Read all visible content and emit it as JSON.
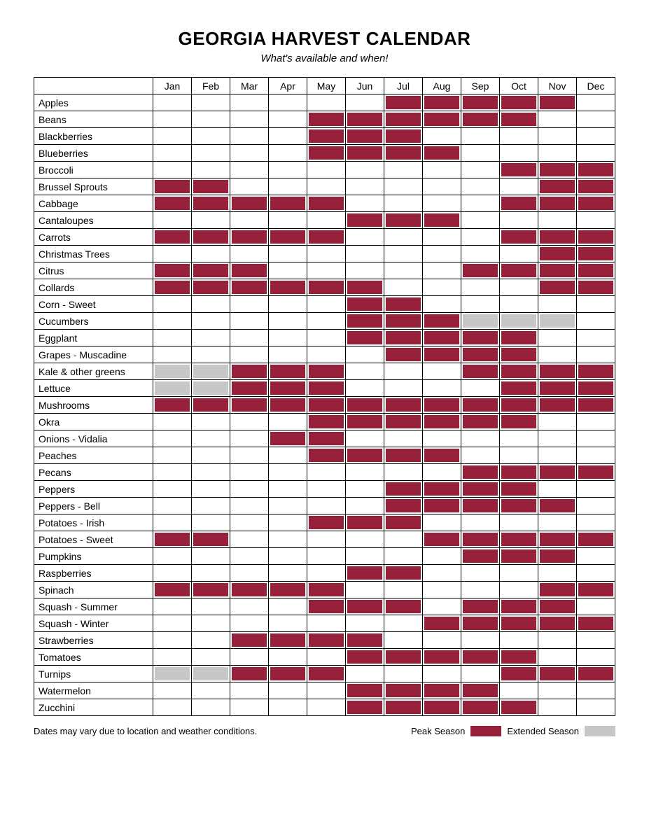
{
  "title": "GEORGIA HARVEST CALENDAR",
  "subtitle": "What's available and when!",
  "colors": {
    "peak": "#97203a",
    "extended": "#c7c7c7",
    "border": "#000000",
    "background": "#ffffff"
  },
  "months": [
    "Jan",
    "Feb",
    "Mar",
    "Apr",
    "May",
    "Jun",
    "Jul",
    "Aug",
    "Sep",
    "Oct",
    "Nov",
    "Dec"
  ],
  "legend": {
    "peak_label": "Peak Season",
    "extended_label": "Extended Season"
  },
  "footnote": "Dates may vary due to location and weather conditions.",
  "produce": [
    {
      "name": "Apples",
      "months": [
        "",
        "",
        "",
        "",
        "",
        "",
        "P",
        "P",
        "P",
        "P",
        "P",
        ""
      ]
    },
    {
      "name": "Beans",
      "months": [
        "",
        "",
        "",
        "",
        "P",
        "P",
        "P",
        "P",
        "P",
        "P",
        "",
        ""
      ]
    },
    {
      "name": "Blackberries",
      "months": [
        "",
        "",
        "",
        "",
        "P",
        "P",
        "P",
        "",
        "",
        "",
        "",
        ""
      ]
    },
    {
      "name": "Blueberries",
      "months": [
        "",
        "",
        "",
        "",
        "P",
        "P",
        "P",
        "P",
        "",
        "",
        "",
        ""
      ]
    },
    {
      "name": "Broccoli",
      "months": [
        "",
        "",
        "",
        "",
        "",
        "",
        "",
        "",
        "",
        "P",
        "P",
        "P"
      ]
    },
    {
      "name": "Brussel Sprouts",
      "months": [
        "P",
        "P",
        "",
        "",
        "",
        "",
        "",
        "",
        "",
        "",
        "P",
        "P"
      ]
    },
    {
      "name": "Cabbage",
      "months": [
        "P",
        "P",
        "P",
        "P",
        "P",
        "",
        "",
        "",
        "",
        "P",
        "P",
        "P"
      ]
    },
    {
      "name": "Cantaloupes",
      "months": [
        "",
        "",
        "",
        "",
        "",
        "P",
        "P",
        "P",
        "",
        "",
        "",
        ""
      ]
    },
    {
      "name": "Carrots",
      "months": [
        "P",
        "P",
        "P",
        "P",
        "P",
        "",
        "",
        "",
        "",
        "P",
        "P",
        "P"
      ]
    },
    {
      "name": "Christmas Trees",
      "months": [
        "",
        "",
        "",
        "",
        "",
        "",
        "",
        "",
        "",
        "",
        "P",
        "P"
      ]
    },
    {
      "name": "Citrus",
      "months": [
        "P",
        "P",
        "P",
        "",
        "",
        "",
        "",
        "",
        "P",
        "P",
        "P",
        "P"
      ]
    },
    {
      "name": "Collards",
      "months": [
        "P",
        "P",
        "P",
        "P",
        "P",
        "P",
        "",
        "",
        "",
        "",
        "P",
        "P"
      ]
    },
    {
      "name": "Corn - Sweet",
      "months": [
        "",
        "",
        "",
        "",
        "",
        "P",
        "P",
        "",
        "",
        "",
        "",
        ""
      ]
    },
    {
      "name": "Cucumbers",
      "months": [
        "",
        "",
        "",
        "",
        "",
        "P",
        "P",
        "P",
        "E",
        "E",
        "E",
        ""
      ]
    },
    {
      "name": "Eggplant",
      "months": [
        "",
        "",
        "",
        "",
        "",
        "P",
        "P",
        "P",
        "P",
        "P",
        "",
        ""
      ]
    },
    {
      "name": "Grapes - Muscadine",
      "months": [
        "",
        "",
        "",
        "",
        "",
        "",
        "P",
        "P",
        "P",
        "P",
        "",
        ""
      ]
    },
    {
      "name": "Kale & other greens",
      "months": [
        "E",
        "E",
        "P",
        "P",
        "P",
        "",
        "",
        "",
        "P",
        "P",
        "P",
        "P"
      ]
    },
    {
      "name": "Lettuce",
      "months": [
        "E",
        "E",
        "P",
        "P",
        "P",
        "",
        "",
        "",
        "",
        "P",
        "P",
        "P"
      ]
    },
    {
      "name": "Mushrooms",
      "months": [
        "P",
        "P",
        "P",
        "P",
        "P",
        "P",
        "P",
        "P",
        "P",
        "P",
        "P",
        "P"
      ]
    },
    {
      "name": "Okra",
      "months": [
        "",
        "",
        "",
        "",
        "P",
        "P",
        "P",
        "P",
        "P",
        "P",
        "",
        ""
      ]
    },
    {
      "name": "Onions - Vidalia",
      "months": [
        "",
        "",
        "",
        "P",
        "P",
        "",
        "",
        "",
        "",
        "",
        "",
        ""
      ]
    },
    {
      "name": "Peaches",
      "months": [
        "",
        "",
        "",
        "",
        "P",
        "P",
        "P",
        "P",
        "",
        "",
        "",
        ""
      ]
    },
    {
      "name": "Pecans",
      "months": [
        "",
        "",
        "",
        "",
        "",
        "",
        "",
        "",
        "P",
        "P",
        "P",
        "P"
      ]
    },
    {
      "name": "Peppers",
      "months": [
        "",
        "",
        "",
        "",
        "",
        "",
        "P",
        "P",
        "P",
        "P",
        "",
        ""
      ]
    },
    {
      "name": "Peppers - Bell",
      "months": [
        "",
        "",
        "",
        "",
        "",
        "",
        "P",
        "P",
        "P",
        "P",
        "P",
        ""
      ]
    },
    {
      "name": "Potatoes - Irish",
      "months": [
        "",
        "",
        "",
        "",
        "P",
        "P",
        "P",
        "",
        "",
        "",
        "",
        ""
      ]
    },
    {
      "name": "Potatoes - Sweet",
      "months": [
        "P",
        "P",
        "",
        "",
        "",
        "",
        "",
        "P",
        "P",
        "P",
        "P",
        "P"
      ]
    },
    {
      "name": "Pumpkins",
      "months": [
        "",
        "",
        "",
        "",
        "",
        "",
        "",
        "",
        "P",
        "P",
        "P",
        ""
      ]
    },
    {
      "name": "Raspberries",
      "months": [
        "",
        "",
        "",
        "",
        "",
        "P",
        "P",
        "",
        "",
        "",
        "",
        ""
      ]
    },
    {
      "name": "Spinach",
      "months": [
        "P",
        "P",
        "P",
        "P",
        "P",
        "",
        "",
        "",
        "",
        "",
        "P",
        "P"
      ]
    },
    {
      "name": "Squash - Summer",
      "months": [
        "",
        "",
        "",
        "",
        "P",
        "P",
        "P",
        "",
        "P",
        "P",
        "P",
        ""
      ]
    },
    {
      "name": "Squash - Winter",
      "months": [
        "",
        "",
        "",
        "",
        "",
        "",
        "",
        "P",
        "P",
        "P",
        "P",
        "P"
      ]
    },
    {
      "name": "Strawberries",
      "months": [
        "",
        "",
        "P",
        "P",
        "P",
        "P",
        "",
        "",
        "",
        "",
        "",
        ""
      ]
    },
    {
      "name": "Tomatoes",
      "months": [
        "",
        "",
        "",
        "",
        "",
        "P",
        "P",
        "P",
        "P",
        "P",
        "",
        ""
      ]
    },
    {
      "name": "Turnips",
      "months": [
        "E",
        "E",
        "P",
        "P",
        "P",
        "",
        "",
        "",
        "",
        "P",
        "P",
        "P"
      ]
    },
    {
      "name": "Watermelon",
      "months": [
        "",
        "",
        "",
        "",
        "",
        "P",
        "P",
        "P",
        "P",
        "",
        "",
        ""
      ]
    },
    {
      "name": "Zucchini",
      "months": [
        "",
        "",
        "",
        "",
        "",
        "P",
        "P",
        "P",
        "P",
        "P",
        "",
        ""
      ]
    }
  ]
}
